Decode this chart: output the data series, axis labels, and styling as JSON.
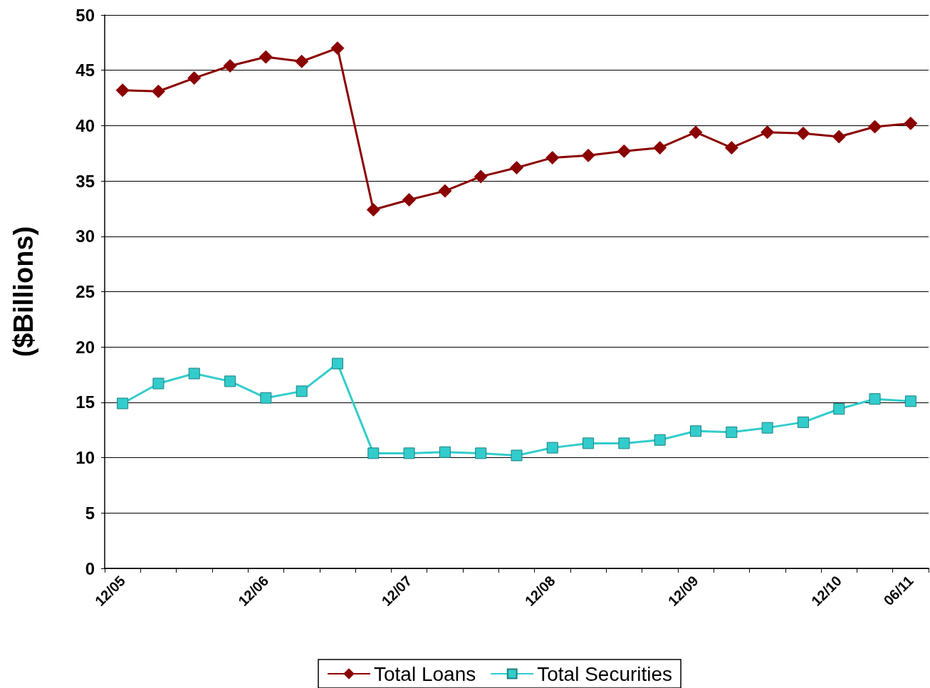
{
  "chart_data": {
    "type": "line",
    "ylabel": "($Billions)",
    "categories": [
      "12/05",
      null,
      null,
      null,
      "12/06",
      null,
      null,
      null,
      "12/07",
      null,
      null,
      null,
      "12/08",
      null,
      null,
      null,
      "12/09",
      null,
      null,
      null,
      "12/10",
      null,
      "06/11"
    ],
    "series": [
      {
        "name": "Total Loans",
        "color": "#8b0000",
        "marker": "diamond",
        "values": [
          43.2,
          43.1,
          44.3,
          45.4,
          46.2,
          45.8,
          47.0,
          32.4,
          33.3,
          34.1,
          35.4,
          36.2,
          37.1,
          37.3,
          37.7,
          38.0,
          39.4,
          38.0,
          39.4,
          39.3,
          39.0,
          39.9,
          40.2
        ]
      },
      {
        "name": "Total Securities",
        "color": "#33cccc",
        "marker": "square",
        "values": [
          14.9,
          16.7,
          17.6,
          16.9,
          15.4,
          16.0,
          18.5,
          10.4,
          10.4,
          10.5,
          10.4,
          10.2,
          10.9,
          11.3,
          11.3,
          11.6,
          12.4,
          12.3,
          12.7,
          13.2,
          14.4,
          15.3,
          15.1
        ]
      }
    ],
    "ylim": [
      0,
      50
    ],
    "yticks": [
      0,
      5,
      10,
      15,
      20,
      25,
      30,
      35,
      40,
      45,
      50
    ],
    "grid": "y",
    "legend": "bottom",
    "line_style": "solid"
  }
}
